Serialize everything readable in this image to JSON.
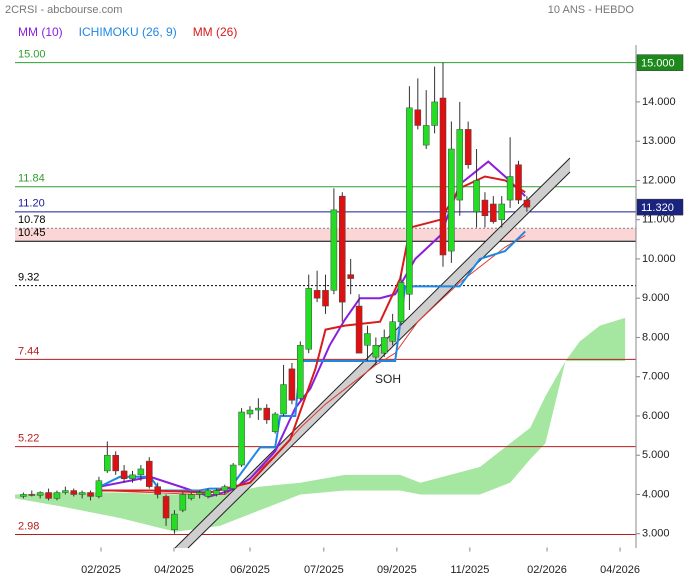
{
  "chart_data": {
    "type": "candlestick",
    "title": "2CRSI - abcbourse.com",
    "subtitle": "10 ANS - HEBDO",
    "annotation": "SOH",
    "xlim": [
      0,
      74
    ],
    "xticks": [
      {
        "value": 10.25,
        "label": "02/2025"
      },
      {
        "value": 18.95,
        "label": "04/2025"
      },
      {
        "value": 28.0,
        "label": "06/2025"
      },
      {
        "value": 36.8,
        "label": "07/2025"
      },
      {
        "value": 45.5,
        "label": "09/2025"
      },
      {
        "value": 54.2,
        "label": "11/2025"
      },
      {
        "value": 63.4,
        "label": "02/2026"
      },
      {
        "value": 72.1,
        "label": "04/2026"
      }
    ],
    "ylim": [
      2.7,
      15.45
    ],
    "yticks": [
      {
        "value": 3,
        "label": "3.000"
      },
      {
        "value": 4,
        "label": "4.000"
      },
      {
        "value": 5,
        "label": "5.000"
      },
      {
        "value": 6,
        "label": "6.000"
      },
      {
        "value": 7,
        "label": "7.000"
      },
      {
        "value": 8,
        "label": "8.000"
      },
      {
        "value": 9,
        "label": "9.000"
      },
      {
        "value": 10,
        "label": "10.000"
      },
      {
        "value": 11,
        "label": "11.000"
      },
      {
        "value": 12,
        "label": "12.000"
      },
      {
        "value": 13,
        "label": "13.000"
      },
      {
        "value": 14,
        "label": "14.000"
      }
    ],
    "up_color": "#22dd22",
    "down_color": "#dd1111",
    "candles": {
      "open": [
        3.95,
        4.0,
        3.98,
        4.05,
        3.9,
        4.05,
        4.1,
        4.0,
        4.05,
        3.95,
        4.6,
        5.0,
        4.6,
        4.4,
        4.5,
        4.85,
        4.2,
        3.95,
        3.1,
        3.6,
        3.9,
        4.0,
        3.95,
        4.0,
        4.1,
        4.15,
        4.75,
        6.05,
        6.15,
        6.2,
        5.6,
        6.05,
        7.2,
        6.45,
        7.7,
        9.2,
        9.2,
        9.2,
        11.6,
        9.6,
        8.8,
        7.8,
        7.5,
        7.6,
        7.9,
        8.4,
        9.1,
        13.8,
        12.9,
        13.4,
        14.1,
        10.2,
        11.5,
        13.3,
        11.2,
        11.5,
        11.4,
        11.0,
        11.5,
        12.4,
        11.5
      ],
      "high": [
        4.05,
        4.1,
        4.08,
        4.15,
        4.1,
        4.2,
        4.15,
        4.1,
        4.1,
        4.45,
        5.35,
        5.1,
        4.75,
        4.6,
        4.75,
        4.95,
        4.3,
        4.0,
        3.6,
        4.05,
        4.05,
        4.1,
        4.15,
        4.15,
        4.25,
        4.8,
        6.2,
        6.25,
        6.45,
        6.3,
        6.1,
        7.3,
        7.35,
        7.9,
        9.6,
        9.7,
        9.6,
        11.8,
        11.7,
        10.0,
        9.1,
        8.3,
        8.0,
        8.2,
        8.6,
        9.6,
        14.4,
        14.6,
        14.3,
        14.9,
        15.0,
        13.5,
        14.0,
        13.5,
        12.8,
        11.7,
        11.6,
        11.6,
        13.1,
        12.5,
        11.6
      ],
      "low": [
        3.9,
        3.95,
        3.9,
        3.85,
        3.85,
        4.0,
        3.95,
        3.9,
        3.85,
        3.9,
        4.55,
        4.5,
        4.3,
        4.3,
        4.35,
        4.15,
        3.9,
        3.2,
        3.0,
        3.55,
        3.85,
        3.9,
        3.9,
        3.95,
        4.0,
        4.1,
        4.7,
        5.95,
        5.9,
        5.8,
        5.55,
        6.0,
        6.3,
        6.4,
        7.6,
        8.9,
        8.6,
        9.1,
        8.4,
        9.1,
        7.6,
        7.4,
        7.3,
        7.5,
        7.8,
        8.3,
        8.7,
        13.3,
        12.8,
        13.2,
        9.8,
        9.9,
        11.1,
        12.3,
        10.8,
        10.8,
        10.9,
        10.8,
        11.3,
        11.4,
        11.2
      ],
      "close": [
        4.0,
        3.98,
        4.05,
        3.9,
        4.05,
        4.1,
        4.0,
        4.05,
        3.95,
        4.35,
        5.0,
        4.6,
        4.4,
        4.5,
        4.65,
        4.2,
        4.0,
        3.4,
        3.5,
        4.0,
        4.0,
        4.05,
        4.1,
        4.1,
        4.2,
        4.75,
        6.1,
        6.15,
        6.2,
        5.9,
        6.05,
        6.8,
        6.4,
        7.8,
        9.25,
        9.0,
        8.8,
        11.25,
        8.9,
        9.5,
        7.6,
        8.1,
        7.8,
        8.0,
        8.4,
        9.4,
        13.85,
        13.4,
        13.4,
        14.0,
        10.1,
        12.8,
        13.3,
        12.4,
        12.0,
        11.1,
        10.95,
        11.4,
        12.1,
        11.5,
        11.32
      ]
    },
    "series": [
      {
        "name": "MM (10)",
        "color": "#8a1ee0",
        "x": [
          10.1,
          13.7,
          16.1,
          19.7,
          23.2,
          25.6,
          28,
          31,
          33.4,
          35.2,
          37.5,
          39.3,
          41.1,
          43.5,
          45.3,
          47.7,
          50.7,
          53,
          56.4,
          58.4,
          60.8
        ],
        "values": [
          4.2,
          4.35,
          4.45,
          4.2,
          3.95,
          4.1,
          4.4,
          5.1,
          6.2,
          6.7,
          7.8,
          8.45,
          9.0,
          9.0,
          9.1,
          10.0,
          10.6,
          11.9,
          12.48,
          12.1,
          11.6
        ]
      },
      {
        "name": "ICHIMOKU (26, 9)",
        "color": "#1e88e5",
        "x": [
          10.1,
          12.5,
          16.1,
          17.3,
          22,
          23.2,
          25.6,
          29.2,
          31,
          31.6,
          33.4,
          34,
          45.3,
          46.5,
          53,
          55.4,
          58.4,
          60.8
        ],
        "values": [
          4.2,
          4.45,
          4.45,
          4.1,
          4.1,
          4.15,
          4.15,
          5.2,
          5.2,
          6.0,
          6.0,
          7.4,
          7.4,
          9.3,
          9.3,
          10.0,
          10.2,
          10.7
        ]
      },
      {
        "name": "MM (26)",
        "color": "#d81b1b",
        "x": [
          10.1,
          16.1,
          23.2,
          28,
          32.8,
          35.8,
          37,
          39.3,
          43.5,
          45.9,
          47.1,
          50.7,
          53,
          56,
          58.4,
          60.8
        ],
        "values": [
          4.1,
          4.1,
          4.05,
          4.3,
          5.4,
          7.2,
          8.2,
          8.3,
          8.4,
          9.5,
          10.8,
          11.0,
          11.8,
          12.1,
          12.0,
          11.7
        ]
      }
    ],
    "lagging_line": {
      "color": "#e53935",
      "x": [
        10,
        16,
        22,
        25,
        28,
        31,
        34,
        37,
        40,
        43,
        45.3,
        48,
        51,
        53,
        56,
        58.4,
        60.8
      ],
      "values": [
        4.1,
        4.05,
        4.0,
        4.0,
        4.4,
        5.0,
        5.7,
        6.3,
        6.8,
        7.3,
        7.6,
        8.4,
        9.0,
        9.4,
        9.9,
        10.3,
        10.6
      ]
    },
    "cloud": {
      "color": "#a5e6a0",
      "x": [
        0,
        5.4,
        12.5,
        19.1,
        24.4,
        29.2,
        34,
        39.3,
        45.9,
        48.3,
        55.4,
        59,
        61.4,
        63.2,
        65.6,
        67.3,
        69.7,
        72.7
      ],
      "upper": [
        4.0,
        4.05,
        4.05,
        4.0,
        4.0,
        4.2,
        4.3,
        4.5,
        4.5,
        4.3,
        4.7,
        5.3,
        5.7,
        6.5,
        7.4,
        7.9,
        8.3,
        8.5
      ],
      "lower": [
        3.9,
        3.7,
        3.4,
        3.05,
        3.2,
        3.6,
        4.0,
        4.1,
        4.1,
        4.0,
        4.0,
        4.3,
        4.9,
        5.3,
        7.4,
        7.4,
        7.4,
        7.4
      ]
    },
    "levels": [
      {
        "value": 15,
        "label": "15.00",
        "color": "#2e9e2e",
        "dash": false
      },
      {
        "value": 11.84,
        "color": "#2e9e2e",
        "dash": false
      },
      {
        "value": 11.2,
        "label": "11.20",
        "color": "#1a1a9c",
        "dash": false
      },
      {
        "value": 10.78,
        "color": "#000000",
        "dash": true
      },
      {
        "value": 10.45,
        "color": "#000000",
        "dash": false,
        "fill": "#fad6d6"
      },
      {
        "value": 9.32,
        "color": "#000000",
        "dash": true
      },
      {
        "value": 7.44,
        "color": "#b71c1c",
        "dash": false
      },
      {
        "value": 5.22,
        "color": "#b71c1c",
        "dash": false
      },
      {
        "value": 2.98,
        "color": "#b71c1c",
        "dash": false
      }
    ],
    "price_tags": [
      {
        "value": 15,
        "label": "15.000",
        "color": "#1b8a1b"
      },
      {
        "value": 11.32,
        "label": "11.320",
        "color": "#1a237e"
      }
    ]
  }
}
